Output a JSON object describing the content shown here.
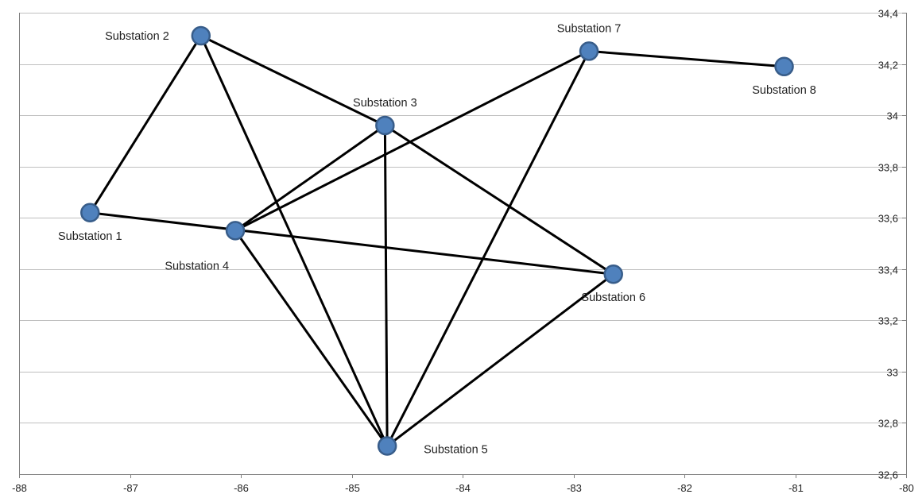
{
  "chart_data": {
    "type": "scatter",
    "title": "",
    "xlabel": "",
    "ylabel": "",
    "xlim": [
      -88,
      -80
    ],
    "ylim": [
      32.6,
      34.4
    ],
    "x_ticks": [
      -88,
      -87,
      -86,
      -85,
      -84,
      -83,
      -82,
      -81,
      -80
    ],
    "x_tick_labels": [
      "-88",
      "-87",
      "-86",
      "-85",
      "-84",
      "-83",
      "-82",
      "-81",
      "-80"
    ],
    "y_ticks": [
      32.6,
      32.8,
      33,
      33.2,
      33.4,
      33.6,
      33.8,
      34,
      34.2,
      34.4
    ],
    "y_tick_labels": [
      "32,6",
      "32,8",
      "33",
      "33,2",
      "33,4",
      "33,6",
      "33,8",
      "34",
      "34,2",
      "34,4"
    ],
    "y_axis_side": "right",
    "horizontal_gridlines": true,
    "vertical_gridlines": false,
    "nodes": [
      {
        "id": "s1",
        "label": "Substation 1",
        "x": -87.36,
        "y": 33.62,
        "label_position": "below"
      },
      {
        "id": "s2",
        "label": "Substation 2",
        "x": -86.36,
        "y": 34.31,
        "label_position": "left"
      },
      {
        "id": "s3",
        "label": "Substation 3",
        "x": -84.7,
        "y": 33.96,
        "label_position": "above"
      },
      {
        "id": "s4",
        "label": "Substation 4",
        "x": -86.05,
        "y": 33.55,
        "label_position": "below-left"
      },
      {
        "id": "s5",
        "label": "Substation 5",
        "x": -84.68,
        "y": 32.71,
        "label_position": "right"
      },
      {
        "id": "s6",
        "label": "Substation 6",
        "x": -82.64,
        "y": 33.38,
        "label_position": "below"
      },
      {
        "id": "s7",
        "label": "Substation 7",
        "x": -82.86,
        "y": 34.25,
        "label_position": "above"
      },
      {
        "id": "s8",
        "label": "Substation 8",
        "x": -81.1,
        "y": 34.19,
        "label_position": "below"
      }
    ],
    "edges": [
      [
        "s1",
        "s2"
      ],
      [
        "s1",
        "s6"
      ],
      [
        "s2",
        "s3"
      ],
      [
        "s2",
        "s5"
      ],
      [
        "s3",
        "s4"
      ],
      [
        "s3",
        "s5"
      ],
      [
        "s3",
        "s6"
      ],
      [
        "s4",
        "s5"
      ],
      [
        "s4",
        "s7"
      ],
      [
        "s5",
        "s6"
      ],
      [
        "s5",
        "s7"
      ],
      [
        "s7",
        "s8"
      ]
    ],
    "colors": {
      "node_fill": "#4f81bd",
      "node_stroke": "#385d8a",
      "edge": "#000000",
      "gridline": "#bfbfbf",
      "axis": "#7f7f7f"
    }
  }
}
